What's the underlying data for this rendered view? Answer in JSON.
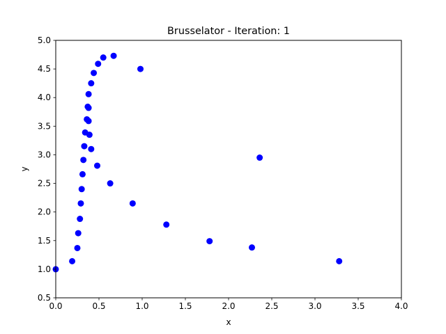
{
  "chart_data": {
    "type": "scatter",
    "title": "Brusselator - Iteration: 1",
    "xlabel": "x",
    "ylabel": "y",
    "xlim": [
      0,
      4
    ],
    "ylim": [
      0.5,
      5.0
    ],
    "xticks": [
      "0.0",
      "0.5",
      "1.0",
      "1.5",
      "2.0",
      "2.5",
      "3.0",
      "3.5",
      "4.0"
    ],
    "yticks": [
      "0.5",
      "1.0",
      "1.5",
      "2.0",
      "2.5",
      "3.0",
      "3.5",
      "4.0",
      "4.5",
      "5.0"
    ],
    "grid": false,
    "marker_color": "#0000ff",
    "points": [
      {
        "x": 0.0,
        "y": 1.0
      },
      {
        "x": 0.19,
        "y": 1.14
      },
      {
        "x": 0.25,
        "y": 1.37
      },
      {
        "x": 0.26,
        "y": 1.63
      },
      {
        "x": 0.28,
        "y": 1.88
      },
      {
        "x": 0.29,
        "y": 2.15
      },
      {
        "x": 0.3,
        "y": 2.4
      },
      {
        "x": 0.31,
        "y": 2.66
      },
      {
        "x": 0.32,
        "y": 2.91
      },
      {
        "x": 0.33,
        "y": 3.15
      },
      {
        "x": 0.34,
        "y": 3.39
      },
      {
        "x": 0.36,
        "y": 3.62
      },
      {
        "x": 0.37,
        "y": 3.84
      },
      {
        "x": 0.38,
        "y": 3.82
      },
      {
        "x": 0.38,
        "y": 3.59
      },
      {
        "x": 0.39,
        "y": 3.35
      },
      {
        "x": 0.41,
        "y": 3.1
      },
      {
        "x": 0.38,
        "y": 4.06
      },
      {
        "x": 0.41,
        "y": 4.25
      },
      {
        "x": 0.44,
        "y": 4.43
      },
      {
        "x": 0.49,
        "y": 4.59
      },
      {
        "x": 0.55,
        "y": 4.7
      },
      {
        "x": 0.67,
        "y": 4.73
      },
      {
        "x": 0.98,
        "y": 4.5
      },
      {
        "x": 0.48,
        "y": 2.81
      },
      {
        "x": 0.63,
        "y": 2.5
      },
      {
        "x": 0.89,
        "y": 2.15
      },
      {
        "x": 1.28,
        "y": 1.78
      },
      {
        "x": 1.78,
        "y": 1.49
      },
      {
        "x": 2.27,
        "y": 1.38
      },
      {
        "x": 2.36,
        "y": 2.95
      },
      {
        "x": 3.28,
        "y": 1.14
      }
    ]
  }
}
